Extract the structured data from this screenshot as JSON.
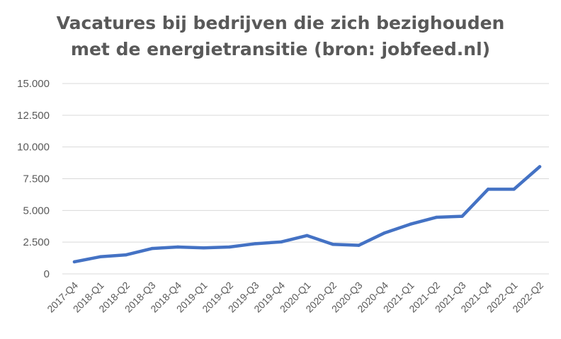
{
  "chart_data": {
    "type": "line",
    "title_lines": [
      "Vacatures bij bedrijven die zich bezighouden",
      "met de energietransitie (bron: jobfeed.nl)"
    ],
    "categories": [
      "2017-Q4",
      "2018-Q1",
      "2018-Q2",
      "2018-Q3",
      "2018-Q4",
      "2019-Q1",
      "2019-Q2",
      "2019-Q3",
      "2019-Q4",
      "2020-Q1",
      "2020-Q2",
      "2020-Q3",
      "2020-Q4",
      "2021-Q1",
      "2021-Q2",
      "2021-Q3",
      "2021-Q4",
      "2022-Q1",
      "2022-Q2"
    ],
    "series": [
      {
        "values": [
          950,
          1350,
          1500,
          2000,
          2120,
          2050,
          2120,
          2380,
          2520,
          3020,
          2330,
          2250,
          3230,
          3920,
          4460,
          4540,
          6670,
          6670,
          8450
        ]
      }
    ],
    "y_ticks": [
      0,
      2500,
      5000,
      7500,
      10000,
      12500,
      15000
    ],
    "y_tick_labels": [
      "0",
      "2.500",
      "5.000",
      "7.500",
      "10.000",
      "12.500",
      "15.000"
    ],
    "ylim": [
      0,
      15000
    ],
    "grid": true,
    "line_color": "#4472C4",
    "grid_color": "#D9D9D9"
  }
}
